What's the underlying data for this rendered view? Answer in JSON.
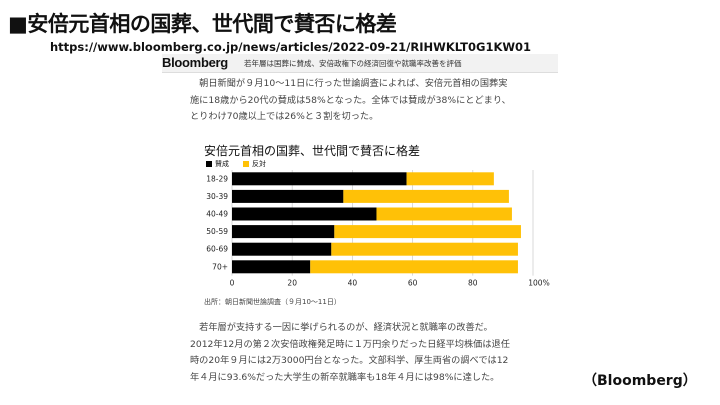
{
  "slide": {
    "title": "■安倍元首相の国葬、世代間で賛否に格差",
    "url": "https://www.bloomberg.co.jp/news/articles/2022-09-21/RIHWKLT0G1KW01",
    "credit": "（Bloomberg）"
  },
  "article": {
    "logo": "Bloomberg",
    "headline": "若年層は国葬に賛成、安倍政権下の経済回復や就職率改善を評価",
    "para1": [
      "　朝日新聞が９月10～11日に行った世論調査によれば、安倍元首相の国葬実",
      "施に18歳から20代の賛成は58%となった。全体では賛成が38%にとどまり、",
      "とりわけ70歳以上では26%と３割を切った。"
    ],
    "para2": [
      "　若年層が支持する一因に挙げられるのが、経済状況と就職率の改善だ。",
      "2012年12月の第２次安倍政権発足時に１万円余りだった日経平均株価は退任",
      "時の20年９月には2万3000円台となった。文部科学、厚生両省の調べでは12",
      "年４月に93.6%だった大学生の新卒就職率も18年４月には98%に達した。"
    ]
  },
  "chart_data": {
    "type": "bar",
    "orientation": "horizontal",
    "stacked": true,
    "title": "安倍元首相の国葬、世代間で賛否に格差",
    "categories": [
      "18-29",
      "30-39",
      "40-49",
      "50-59",
      "60-69",
      "70+"
    ],
    "series": [
      {
        "name": "賛成",
        "color": "#000000",
        "values": [
          58,
          37,
          48,
          34,
          33,
          26
        ]
      },
      {
        "name": "反対",
        "color": "#ffc107",
        "values": [
          29,
          55,
          45,
          62,
          62,
          69
        ]
      }
    ],
    "xlim": [
      0,
      100
    ],
    "xticks": [
      "0",
      "20",
      "40",
      "60",
      "80",
      "100%"
    ],
    "grid": true,
    "legend_position": "top-left",
    "source": "出所：朝日新聞世論調査（９月10～11日）"
  }
}
